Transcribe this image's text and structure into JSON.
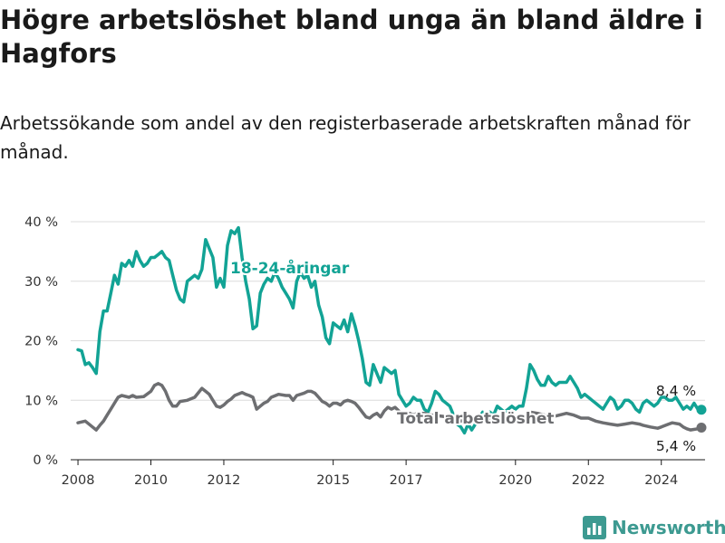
{
  "title": "Högre arbetslöshet bland unga än bland äldre i Hagfors",
  "subtitle": "Arbetssökande som andel av den registerbaserade arbetskraften månad för månad.",
  "brand": {
    "name": "Newsworthy",
    "color": "#3d9a91",
    "icon": "bar-chart-logo-icon"
  },
  "chart_data": {
    "type": "line",
    "title": "Högre arbetslöshet bland unga än bland äldre i Hagfors",
    "subtitle": "Arbetssökande som andel av den registerbaserade arbetskraften månad för månad.",
    "xlabel": "",
    "ylabel": "",
    "ylim": [
      0,
      40
    ],
    "yticks": [
      0,
      10,
      20,
      30,
      40
    ],
    "ytick_labels": [
      "0 %",
      "10 %",
      "20 %",
      "30 %",
      "40 %"
    ],
    "xlim": [
      2007.8,
      2025.2
    ],
    "xticks": [
      2008,
      2010,
      2012,
      2015,
      2017,
      2020,
      2022,
      2024
    ],
    "xtick_labels": [
      "2008",
      "2010",
      "2012",
      "2015",
      "2017",
      "2020",
      "2022",
      "2024"
    ],
    "grid": true,
    "legend": "inline labels",
    "series": [
      {
        "name": "18-24-åringar",
        "color": "#12a395",
        "end_label": "8,4 %",
        "points": [
          [
            2008.0,
            18.5
          ],
          [
            2008.1,
            18.3
          ],
          [
            2008.2,
            16.0
          ],
          [
            2008.3,
            16.3
          ],
          [
            2008.4,
            15.5
          ],
          [
            2008.5,
            14.5
          ],
          [
            2008.6,
            21.5
          ],
          [
            2008.7,
            25.0
          ],
          [
            2008.8,
            25.0
          ],
          [
            2008.9,
            28.0
          ],
          [
            2009.0,
            31.0
          ],
          [
            2009.1,
            29.5
          ],
          [
            2009.2,
            33.0
          ],
          [
            2009.3,
            32.5
          ],
          [
            2009.4,
            33.5
          ],
          [
            2009.5,
            32.5
          ],
          [
            2009.6,
            35.0
          ],
          [
            2009.7,
            33.5
          ],
          [
            2009.8,
            32.5
          ],
          [
            2009.9,
            33.0
          ],
          [
            2010.0,
            34.0
          ],
          [
            2010.1,
            34.0
          ],
          [
            2010.2,
            34.5
          ],
          [
            2010.3,
            35.0
          ],
          [
            2010.4,
            34.0
          ],
          [
            2010.5,
            33.5
          ],
          [
            2010.6,
            31.0
          ],
          [
            2010.7,
            28.5
          ],
          [
            2010.8,
            27.0
          ],
          [
            2010.9,
            26.5
          ],
          [
            2011.0,
            30.0
          ],
          [
            2011.1,
            30.5
          ],
          [
            2011.2,
            31.0
          ],
          [
            2011.3,
            30.5
          ],
          [
            2011.4,
            32.0
          ],
          [
            2011.5,
            37.0
          ],
          [
            2011.6,
            35.5
          ],
          [
            2011.7,
            34.0
          ],
          [
            2011.8,
            29.0
          ],
          [
            2011.9,
            30.5
          ],
          [
            2012.0,
            29.0
          ],
          [
            2012.1,
            36.0
          ],
          [
            2012.2,
            38.5
          ],
          [
            2012.3,
            38.0
          ],
          [
            2012.4,
            39.0
          ],
          [
            2012.5,
            34.0
          ],
          [
            2012.6,
            30.0
          ],
          [
            2012.7,
            27.0
          ],
          [
            2012.8,
            22.0
          ],
          [
            2012.9,
            22.5
          ],
          [
            2013.0,
            28.0
          ],
          [
            2013.1,
            29.5
          ],
          [
            2013.2,
            30.5
          ],
          [
            2013.3,
            30.0
          ],
          [
            2013.4,
            31.5
          ],
          [
            2013.5,
            30.5
          ],
          [
            2013.6,
            29.0
          ],
          [
            2013.7,
            28.0
          ],
          [
            2013.8,
            27.0
          ],
          [
            2013.9,
            25.5
          ],
          [
            2014.0,
            30.0
          ],
          [
            2014.1,
            31.5
          ],
          [
            2014.2,
            30.5
          ],
          [
            2014.3,
            31.0
          ],
          [
            2014.4,
            29.0
          ],
          [
            2014.5,
            30.0
          ],
          [
            2014.6,
            26.0
          ],
          [
            2014.7,
            24.0
          ],
          [
            2014.8,
            20.5
          ],
          [
            2014.9,
            19.5
          ],
          [
            2015.0,
            23.0
          ],
          [
            2015.1,
            22.5
          ],
          [
            2015.2,
            22.0
          ],
          [
            2015.3,
            23.5
          ],
          [
            2015.4,
            21.5
          ],
          [
            2015.5,
            24.5
          ],
          [
            2015.6,
            22.5
          ],
          [
            2015.7,
            20.0
          ],
          [
            2015.8,
            17.0
          ],
          [
            2015.9,
            13.0
          ],
          [
            2016.0,
            12.5
          ],
          [
            2016.1,
            16.0
          ],
          [
            2016.2,
            14.5
          ],
          [
            2016.3,
            13.0
          ],
          [
            2016.4,
            15.5
          ],
          [
            2016.5,
            15.0
          ],
          [
            2016.6,
            14.5
          ],
          [
            2016.7,
            15.0
          ],
          [
            2016.8,
            11.0
          ],
          [
            2016.9,
            10.0
          ],
          [
            2017.0,
            9.0
          ],
          [
            2017.1,
            9.5
          ],
          [
            2017.2,
            10.5
          ],
          [
            2017.3,
            10.0
          ],
          [
            2017.4,
            10.0
          ],
          [
            2017.5,
            8.5
          ],
          [
            2017.6,
            8.0
          ],
          [
            2017.7,
            9.5
          ],
          [
            2017.8,
            11.5
          ],
          [
            2017.9,
            11.0
          ],
          [
            2018.0,
            10.0
          ],
          [
            2018.1,
            9.5
          ],
          [
            2018.2,
            9.0
          ],
          [
            2018.3,
            7.5
          ],
          [
            2018.4,
            6.0
          ],
          [
            2018.5,
            5.5
          ],
          [
            2018.6,
            4.5
          ],
          [
            2018.7,
            6.0
          ],
          [
            2018.8,
            5.0
          ],
          [
            2018.9,
            6.0
          ],
          [
            2019.0,
            7.0
          ],
          [
            2019.1,
            8.0
          ],
          [
            2019.2,
            7.0
          ],
          [
            2019.3,
            8.0
          ],
          [
            2019.4,
            7.5
          ],
          [
            2019.5,
            9.0
          ],
          [
            2019.6,
            8.5
          ],
          [
            2019.7,
            8.0
          ],
          [
            2019.8,
            8.5
          ],
          [
            2019.9,
            9.0
          ],
          [
            2020.0,
            8.5
          ],
          [
            2020.1,
            9.0
          ],
          [
            2020.2,
            9.0
          ],
          [
            2020.3,
            12.0
          ],
          [
            2020.4,
            16.0
          ],
          [
            2020.5,
            15.0
          ],
          [
            2020.6,
            13.5
          ],
          [
            2020.7,
            12.5
          ],
          [
            2020.8,
            12.5
          ],
          [
            2020.9,
            14.0
          ],
          [
            2021.0,
            13.0
          ],
          [
            2021.1,
            12.5
          ],
          [
            2021.2,
            13.0
          ],
          [
            2021.3,
            13.0
          ],
          [
            2021.4,
            13.0
          ],
          [
            2021.5,
            14.0
          ],
          [
            2021.6,
            13.0
          ],
          [
            2021.7,
            12.0
          ],
          [
            2021.8,
            10.5
          ],
          [
            2021.9,
            11.0
          ],
          [
            2022.0,
            10.5
          ],
          [
            2022.1,
            10.0
          ],
          [
            2022.2,
            9.5
          ],
          [
            2022.3,
            9.0
          ],
          [
            2022.4,
            8.5
          ],
          [
            2022.5,
            9.5
          ],
          [
            2022.6,
            10.5
          ],
          [
            2022.7,
            10.0
          ],
          [
            2022.8,
            8.5
          ],
          [
            2022.9,
            9.0
          ],
          [
            2023.0,
            10.0
          ],
          [
            2023.1,
            10.0
          ],
          [
            2023.2,
            9.5
          ],
          [
            2023.3,
            8.5
          ],
          [
            2023.4,
            8.0
          ],
          [
            2023.5,
            9.5
          ],
          [
            2023.6,
            10.0
          ],
          [
            2023.7,
            9.5
          ],
          [
            2023.8,
            9.0
          ],
          [
            2023.9,
            9.5
          ],
          [
            2024.0,
            10.5
          ],
          [
            2024.1,
            10.5
          ],
          [
            2024.2,
            10.0
          ],
          [
            2024.3,
            10.0
          ],
          [
            2024.4,
            10.5
          ],
          [
            2024.5,
            9.5
          ],
          [
            2024.6,
            8.5
          ],
          [
            2024.7,
            9.0
          ],
          [
            2024.8,
            8.5
          ],
          [
            2024.9,
            9.5
          ],
          [
            2025.0,
            8.5
          ],
          [
            2025.1,
            8.4
          ]
        ]
      },
      {
        "name": "Total arbetslöshet",
        "color": "#6d6e71",
        "end_label": "5,4 %",
        "points": [
          [
            2008.0,
            6.2
          ],
          [
            2008.2,
            6.5
          ],
          [
            2008.4,
            5.5
          ],
          [
            2008.5,
            5.0
          ],
          [
            2008.6,
            5.8
          ],
          [
            2008.7,
            6.5
          ],
          [
            2008.8,
            7.5
          ],
          [
            2008.9,
            8.5
          ],
          [
            2009.0,
            9.5
          ],
          [
            2009.1,
            10.5
          ],
          [
            2009.2,
            10.8
          ],
          [
            2009.4,
            10.5
          ],
          [
            2009.5,
            10.8
          ],
          [
            2009.6,
            10.5
          ],
          [
            2009.8,
            10.6
          ],
          [
            2010.0,
            11.5
          ],
          [
            2010.1,
            12.5
          ],
          [
            2010.2,
            12.8
          ],
          [
            2010.3,
            12.5
          ],
          [
            2010.4,
            11.5
          ],
          [
            2010.5,
            10.0
          ],
          [
            2010.6,
            9.0
          ],
          [
            2010.7,
            9.0
          ],
          [
            2010.8,
            9.8
          ],
          [
            2011.0,
            10.0
          ],
          [
            2011.2,
            10.5
          ],
          [
            2011.4,
            12.0
          ],
          [
            2011.5,
            11.5
          ],
          [
            2011.6,
            11.0
          ],
          [
            2011.7,
            10.0
          ],
          [
            2011.8,
            9.0
          ],
          [
            2011.9,
            8.8
          ],
          [
            2012.0,
            9.2
          ],
          [
            2012.1,
            9.8
          ],
          [
            2012.2,
            10.2
          ],
          [
            2012.3,
            10.8
          ],
          [
            2012.5,
            11.3
          ],
          [
            2012.6,
            11.0
          ],
          [
            2012.7,
            10.8
          ],
          [
            2012.8,
            10.5
          ],
          [
            2012.9,
            8.5
          ],
          [
            2013.0,
            9.0
          ],
          [
            2013.1,
            9.5
          ],
          [
            2013.2,
            9.8
          ],
          [
            2013.3,
            10.5
          ],
          [
            2013.5,
            11.0
          ],
          [
            2013.7,
            10.8
          ],
          [
            2013.8,
            10.8
          ],
          [
            2013.9,
            10.0
          ],
          [
            2014.0,
            10.8
          ],
          [
            2014.2,
            11.2
          ],
          [
            2014.3,
            11.5
          ],
          [
            2014.4,
            11.5
          ],
          [
            2014.5,
            11.2
          ],
          [
            2014.6,
            10.5
          ],
          [
            2014.7,
            9.8
          ],
          [
            2014.8,
            9.5
          ],
          [
            2014.9,
            9.0
          ],
          [
            2015.0,
            9.5
          ],
          [
            2015.1,
            9.5
          ],
          [
            2015.2,
            9.2
          ],
          [
            2015.3,
            9.8
          ],
          [
            2015.4,
            10.0
          ],
          [
            2015.5,
            9.8
          ],
          [
            2015.6,
            9.5
          ],
          [
            2015.7,
            8.8
          ],
          [
            2015.8,
            8.0
          ],
          [
            2015.9,
            7.2
          ],
          [
            2016.0,
            7.0
          ],
          [
            2016.1,
            7.5
          ],
          [
            2016.2,
            7.8
          ],
          [
            2016.3,
            7.2
          ],
          [
            2016.4,
            8.2
          ],
          [
            2016.5,
            8.8
          ],
          [
            2016.6,
            8.5
          ],
          [
            2016.7,
            8.8
          ],
          [
            2016.8,
            8.2
          ],
          [
            2016.9,
            7.5
          ],
          [
            2017.0,
            7.5
          ],
          [
            2017.1,
            7.8
          ],
          [
            2017.2,
            7.5
          ],
          [
            2017.3,
            7.8
          ],
          [
            2017.5,
            7.8
          ],
          [
            2017.7,
            7.5
          ],
          [
            2018.0,
            7.3
          ],
          [
            2018.3,
            7.0
          ],
          [
            2018.5,
            6.5
          ],
          [
            2018.7,
            6.8
          ],
          [
            2019.0,
            6.5
          ],
          [
            2019.3,
            6.8
          ],
          [
            2019.6,
            7.0
          ],
          [
            2019.9,
            7.2
          ],
          [
            2020.0,
            7.0
          ],
          [
            2020.2,
            7.2
          ],
          [
            2020.4,
            8.0
          ],
          [
            2020.6,
            7.8
          ],
          [
            2020.8,
            7.5
          ],
          [
            2021.0,
            7.2
          ],
          [
            2021.2,
            7.5
          ],
          [
            2021.4,
            7.8
          ],
          [
            2021.6,
            7.5
          ],
          [
            2021.8,
            7.0
          ],
          [
            2022.0,
            7.0
          ],
          [
            2022.2,
            6.5
          ],
          [
            2022.4,
            6.2
          ],
          [
            2022.6,
            6.0
          ],
          [
            2022.8,
            5.8
          ],
          [
            2023.0,
            6.0
          ],
          [
            2023.2,
            6.2
          ],
          [
            2023.4,
            6.0
          ],
          [
            2023.5,
            5.8
          ],
          [
            2023.7,
            5.5
          ],
          [
            2023.9,
            5.3
          ],
          [
            2024.0,
            5.5
          ],
          [
            2024.2,
            6.0
          ],
          [
            2024.3,
            6.2
          ],
          [
            2024.5,
            6.0
          ],
          [
            2024.6,
            5.5
          ],
          [
            2024.7,
            5.2
          ],
          [
            2024.8,
            5.0
          ],
          [
            2025.0,
            5.2
          ],
          [
            2025.1,
            5.4
          ]
        ]
      }
    ]
  }
}
